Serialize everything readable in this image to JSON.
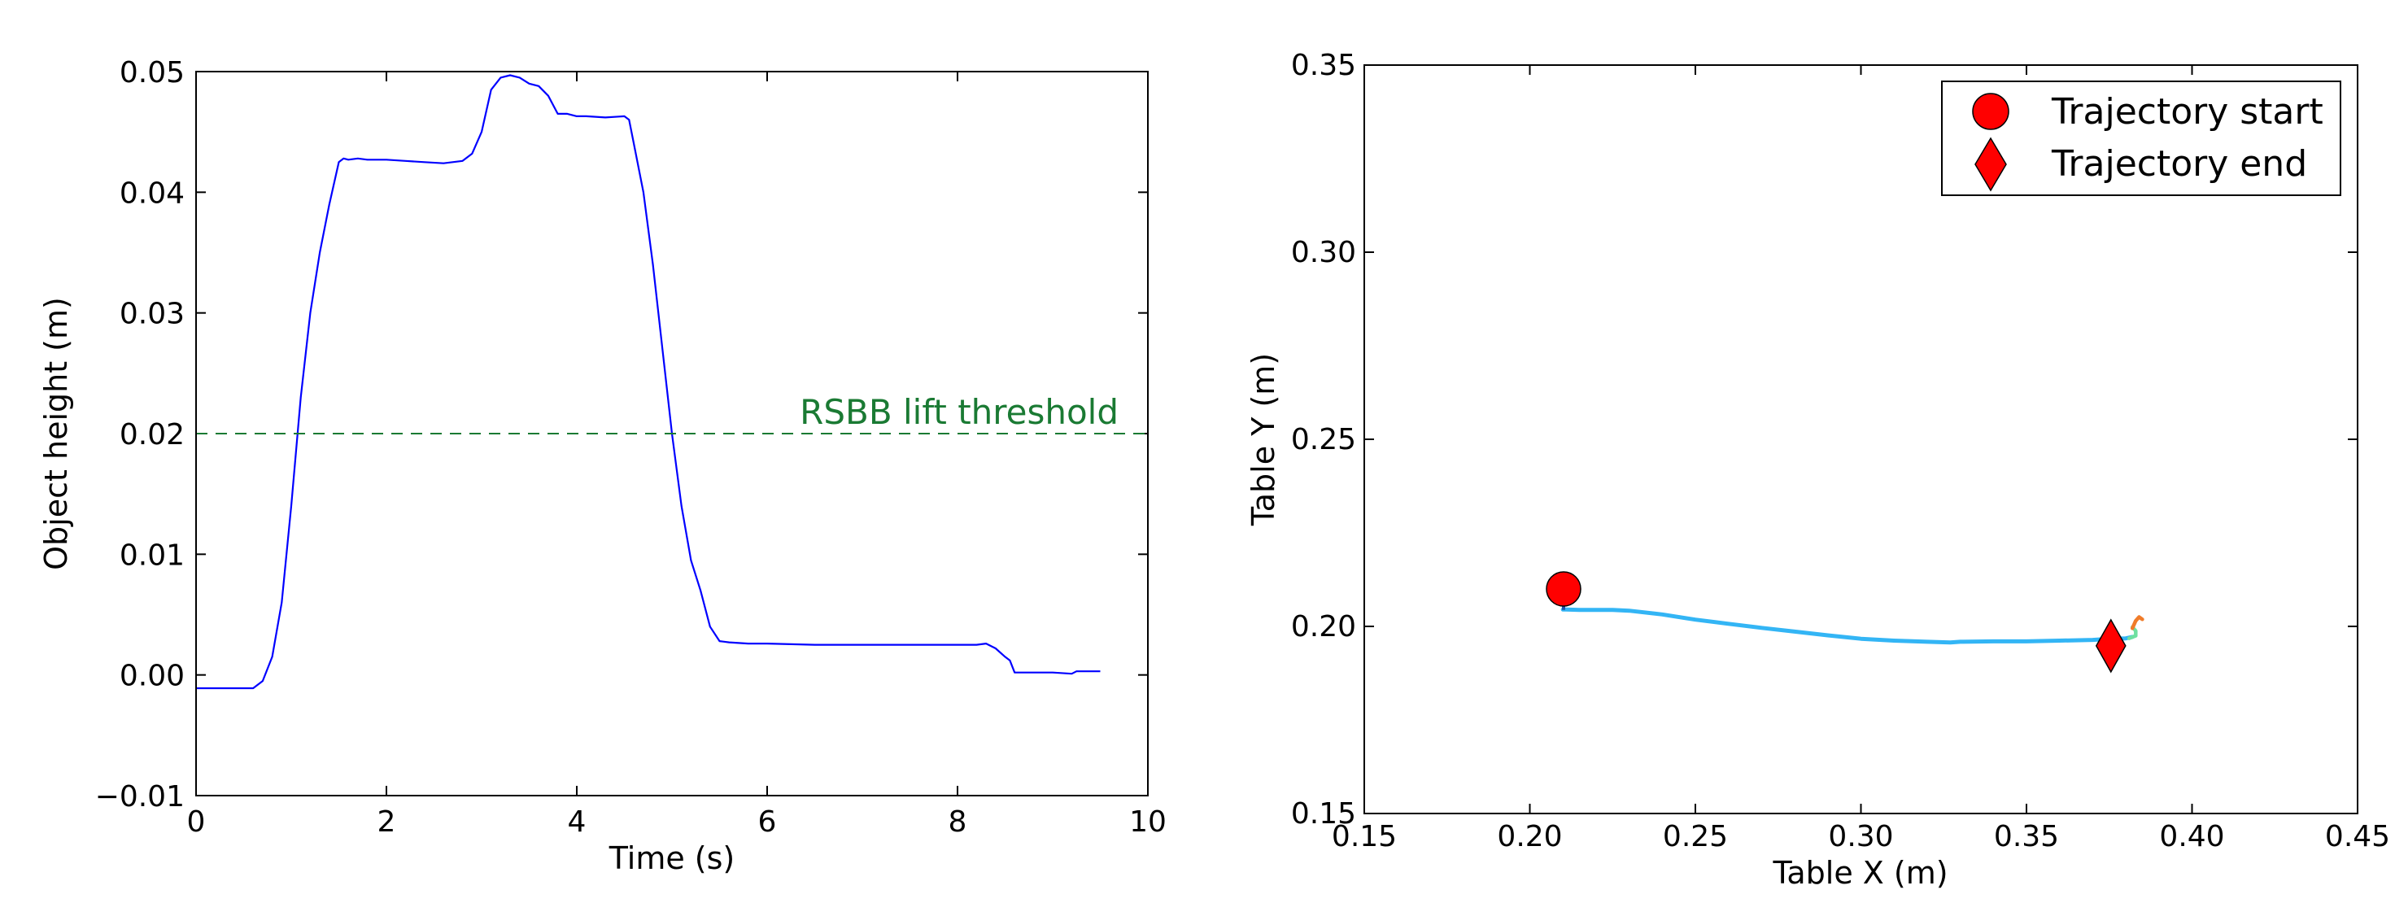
{
  "colors": {
    "height_line": "#0000ff",
    "threshold": "#1a7a33",
    "marker": "#ff0000",
    "traj_main": "#33b5f5",
    "traj_end_green": "#6fe0a0",
    "traj_end_orange": "#f07c2a"
  },
  "chart_data": [
    {
      "type": "line",
      "xlabel": "Time (s)",
      "ylabel": "Object height (m)",
      "xlim": [
        0,
        10
      ],
      "ylim": [
        -0.01,
        0.05
      ],
      "xticks": [
        "0",
        "2",
        "4",
        "6",
        "8",
        "10"
      ],
      "yticks": [
        "−0.01",
        "0.00",
        "0.01",
        "0.02",
        "0.03",
        "0.04",
        "0.05"
      ],
      "grid": false,
      "series": [
        {
          "x": [
            0.0,
            0.6,
            0.7,
            0.8,
            0.9,
            1.0,
            1.1,
            1.2,
            1.3,
            1.4,
            1.5,
            1.55,
            1.6,
            1.7,
            1.8,
            2.0,
            2.2,
            2.4,
            2.6,
            2.8,
            2.9,
            3.0,
            3.1,
            3.2,
            3.3,
            3.4,
            3.5,
            3.6,
            3.7,
            3.8,
            3.9,
            4.0,
            4.1,
            4.3,
            4.5,
            4.55,
            4.6,
            4.7,
            4.8,
            4.9,
            5.0,
            5.1,
            5.2,
            5.3,
            5.4,
            5.5,
            5.6,
            5.8,
            6.0,
            6.5,
            7.0,
            7.5,
            8.0,
            8.2,
            8.3,
            8.4,
            8.5,
            8.55,
            8.6,
            8.7,
            8.8,
            9.0,
            9.2,
            9.25,
            9.3,
            9.5
          ],
          "y": [
            -0.0011,
            -0.0011,
            -0.0005,
            0.0015,
            0.006,
            0.014,
            0.023,
            0.03,
            0.035,
            0.039,
            0.0425,
            0.0428,
            0.0427,
            0.0428,
            0.0427,
            0.0427,
            0.0426,
            0.0425,
            0.0424,
            0.0426,
            0.0432,
            0.045,
            0.0485,
            0.0495,
            0.0497,
            0.0495,
            0.049,
            0.0488,
            0.048,
            0.0465,
            0.0465,
            0.0463,
            0.0463,
            0.0462,
            0.0463,
            0.046,
            0.044,
            0.04,
            0.034,
            0.027,
            0.02,
            0.014,
            0.0095,
            0.007,
            0.004,
            0.0028,
            0.0027,
            0.0026,
            0.0026,
            0.0025,
            0.0025,
            0.0025,
            0.0025,
            0.0025,
            0.0026,
            0.0022,
            0.0015,
            0.0012,
            0.0002,
            0.0002,
            0.0002,
            0.0002,
            0.0001,
            0.0003,
            0.0003,
            0.0003
          ]
        }
      ],
      "annotations": [
        {
          "text": "RSBB lift threshold",
          "y": 0.02,
          "style": "dashed-hline"
        }
      ]
    },
    {
      "type": "line",
      "xlabel": "Table X (m)",
      "ylabel": "Table Y (m)",
      "xlim": [
        0.15,
        0.45
      ],
      "ylim": [
        0.15,
        0.35
      ],
      "xticks": [
        "0.15",
        "0.20",
        "0.25",
        "0.30",
        "0.35",
        "0.40",
        "0.45"
      ],
      "yticks": [
        "0.15",
        "0.20",
        "0.25",
        "0.30",
        "0.35"
      ],
      "grid": false,
      "legend_position": "top-right",
      "legend": [
        "Trajectory start",
        "Trajectory end"
      ],
      "series": [
        {
          "x": [
            0.21,
            0.211,
            0.215,
            0.22,
            0.225,
            0.23,
            0.24,
            0.25,
            0.26,
            0.27,
            0.28,
            0.29,
            0.3,
            0.31,
            0.32,
            0.327,
            0.33,
            0.34,
            0.35,
            0.36,
            0.37,
            0.375,
            0.38,
            0.382
          ],
          "y": [
            0.2045,
            0.2045,
            0.2044,
            0.2044,
            0.2044,
            0.2042,
            0.2032,
            0.2018,
            0.2007,
            0.1996,
            0.1986,
            0.1976,
            0.1967,
            0.1962,
            0.1959,
            0.1957,
            0.1959,
            0.196,
            0.196,
            0.1962,
            0.1964,
            0.1967,
            0.1968,
            0.1972
          ]
        },
        {
          "x": [
            0.381,
            0.383,
            0.383,
            0.382
          ],
          "y": [
            0.1968,
            0.1975,
            0.1988,
            0.1998
          ]
        },
        {
          "x": [
            0.382,
            0.383,
            0.384,
            0.385
          ],
          "y": [
            0.1995,
            0.2015,
            0.2025,
            0.2019
          ]
        }
      ],
      "markers": [
        {
          "label": "Trajectory start",
          "shape": "circle",
          "x": 0.2102,
          "y": 0.21
        },
        {
          "label": "Trajectory end",
          "shape": "diamond",
          "x": 0.3755,
          "y": 0.1948
        }
      ]
    }
  ]
}
